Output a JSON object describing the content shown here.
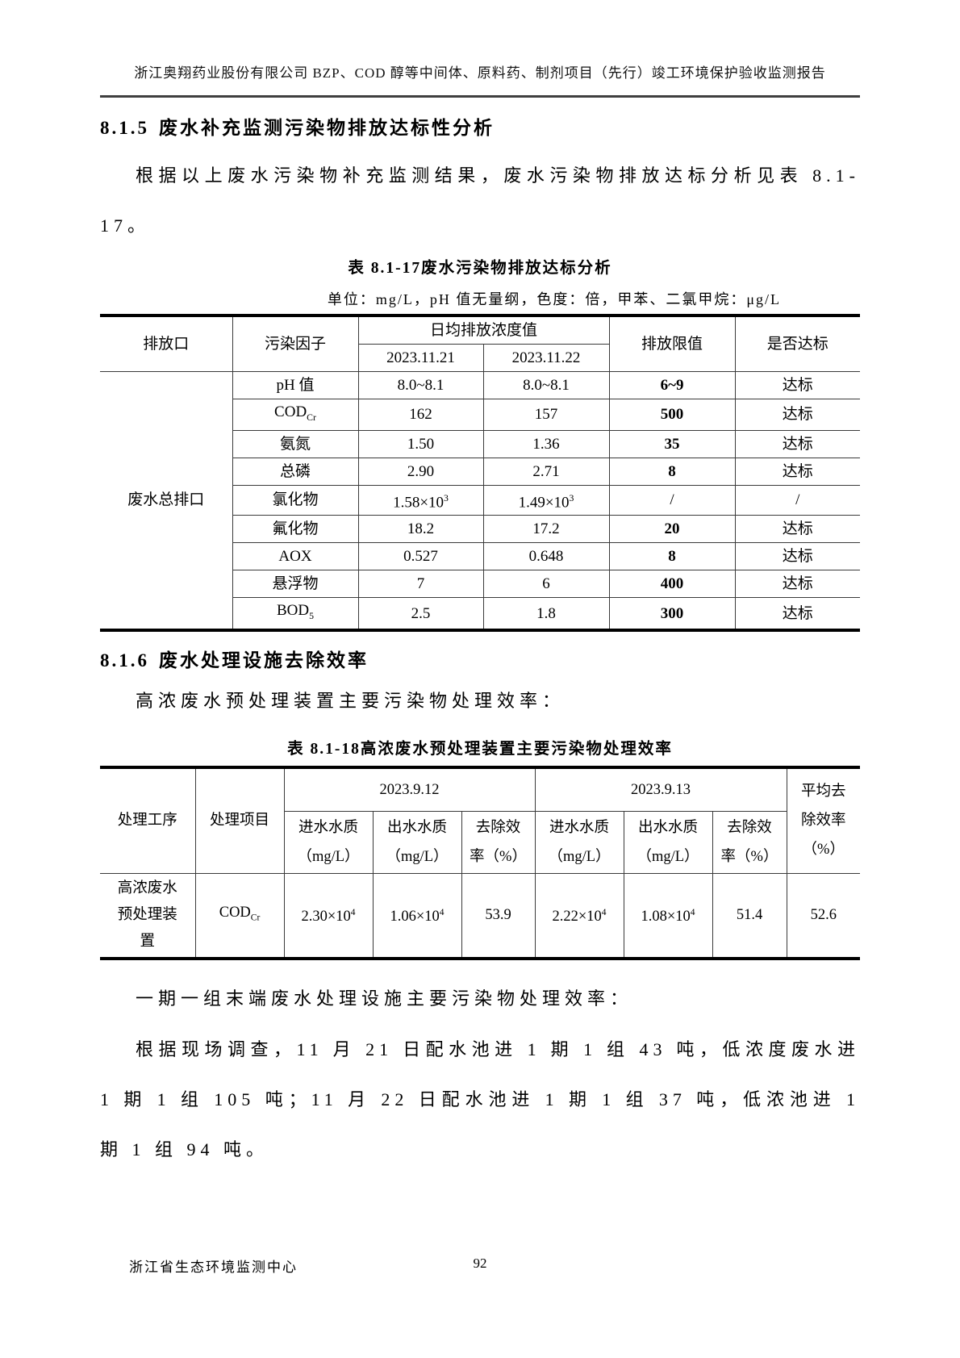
{
  "header": {
    "title": "浙江奥翔药业股份有限公司 BZP、COD 醇等中间体、原料药、制剂项目（先行）竣工环境保护验收监测报告"
  },
  "sections": {
    "s515": {
      "number": "8.1.5",
      "title": "废水补充监测污染物排放达标性分析",
      "intro": "根据以上废水污染物补充监测结果，废水污染物排放达标分析见表 8.1-17。"
    },
    "s516": {
      "number": "8.1.6",
      "title": "废水处理设施去除效率",
      "p1": "高浓废水预处理装置主要污染物处理效率：",
      "p2": "一期一组末端废水处理设施主要污染物处理效率：",
      "p3": "根据现场调查，11 月 21 日配水池进 1 期 1 组 43 吨，低浓度废水进 1 期 1 组 105 吨；11 月 22 日配水池进 1 期 1 组 37 吨，低浓池进 1 期 1 组 94 吨。"
    }
  },
  "table1": {
    "label": "表 8.1-17",
    "title": "废水污染物排放达标分析",
    "unit_note": "单位：mg/L，pH 值无量纲，色度：倍，甲苯、二氯甲烷：μg/L",
    "headers": {
      "outlet": "排放口",
      "factor": "污染因子",
      "daily_avg": "日均排放浓度值",
      "date1": "2023.11.21",
      "date2": "2023.11.22",
      "limit": "排放限值",
      "compliance": "是否达标"
    },
    "outlet_name": "废水总排口",
    "rows": [
      {
        "factor": "pH 值",
        "v1": "8.0~8.1",
        "v2": "8.0~8.1",
        "limit": "6~9",
        "status": "达标"
      },
      {
        "factor": "COD~Cr~",
        "v1": "162",
        "v2": "157",
        "limit": "500",
        "status": "达标"
      },
      {
        "factor": "氨氮",
        "v1": "1.50",
        "v2": "1.36",
        "limit": "35",
        "status": "达标"
      },
      {
        "factor": "总磷",
        "v1": "2.90",
        "v2": "2.71",
        "limit": "8",
        "status": "达标"
      },
      {
        "factor": "氯化物",
        "v1": "1.58×10^3^",
        "v2": "1.49×10^3^",
        "limit": "/",
        "status": "/"
      },
      {
        "factor": "氟化物",
        "v1": "18.2",
        "v2": "17.2",
        "limit": "20",
        "status": "达标"
      },
      {
        "factor": "AOX",
        "v1": "0.527",
        "v2": "0.648",
        "limit": "8",
        "status": "达标"
      },
      {
        "factor": "悬浮物",
        "v1": "7",
        "v2": "6",
        "limit": "400",
        "status": "达标"
      },
      {
        "factor": "BOD~5~",
        "v1": "2.5",
        "v2": "1.8",
        "limit": "300",
        "status": "达标"
      }
    ]
  },
  "table2": {
    "label": "表 8.1-18",
    "title": "高浓废水预处理装置主要污染物处理效率",
    "headers": {
      "process": "处理工序",
      "item": "处理项目",
      "date1": "2023.9.12",
      "date2": "2023.9.13",
      "inlet": "进水水质\n（mg/L）",
      "outlet": "出水水质\n（mg/L）",
      "removal": "去除效\n率（%）",
      "avg_removal": "平均去\n除效率\n（%）"
    },
    "row": {
      "process": "高浓废水\n预处理装\n置",
      "item": "COD~Cr~",
      "d1_in": "2.30×10^4^",
      "d1_out": "1.06×10^4^",
      "d1_removal": "53.9",
      "d2_in": "2.22×10^4^",
      "d2_out": "1.08×10^4^",
      "d2_removal": "51.4",
      "avg": "52.6"
    }
  },
  "footer": {
    "org": "浙江省生态环境监测中心",
    "page": "92"
  }
}
